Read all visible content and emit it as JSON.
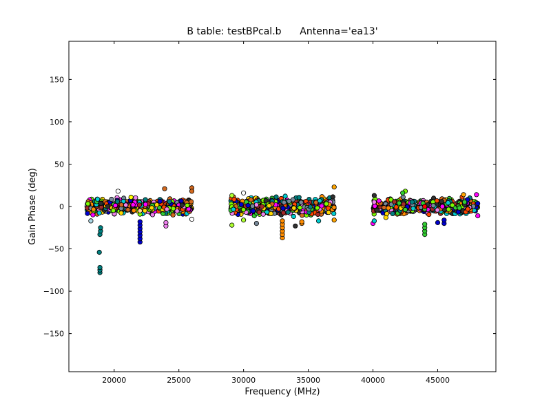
{
  "chart_data": {
    "type": "scatter",
    "title_left": "B table: testBPcal.b",
    "title_right": "Antenna='ea13'",
    "xlabel": "Frequency (MHz)",
    "ylabel": "Gain Phase (deg)",
    "xlim": [
      16500,
      49500
    ],
    "ylim": [
      -195,
      195
    ],
    "xticks": [
      20000,
      25000,
      30000,
      35000,
      40000,
      45000
    ],
    "xtick_labels": [
      "20000",
      "25000",
      "30000",
      "35000",
      "40000",
      "45000"
    ],
    "yticks": [
      150,
      100,
      50,
      0,
      -50,
      -100,
      -150
    ],
    "ytick_labels": [
      "150",
      "100",
      "50",
      "0",
      "−50",
      "−100",
      "−150"
    ],
    "grid": false,
    "legend": "none",
    "colors": [
      "#008080",
      "#ff8c00",
      "#2f2f2f",
      "#7cfc00",
      "#0000cd",
      "#ff00ff",
      "#ee82ee",
      "#ff4500",
      "#00ced1",
      "#ffd700",
      "#d2691e",
      "#778899",
      "#32cd32",
      "#a52a2a"
    ],
    "bands": [
      {
        "x_start": 17900,
        "x_end": 26000,
        "ymin": -12,
        "ymax": 12
      },
      {
        "x_start": 29000,
        "x_end": 37000,
        "ymin": -14,
        "ymax": 14
      },
      {
        "x_start": 40000,
        "x_end": 48100,
        "ymin": -12,
        "ymax": 12
      }
    ],
    "outliers": [
      {
        "x": 18900,
        "y": -78,
        "color": "#008080"
      },
      {
        "x": 18900,
        "y": -75,
        "color": "#008080"
      },
      {
        "x": 18900,
        "y": -72,
        "color": "#008080"
      },
      {
        "x": 18850,
        "y": -54,
        "color": "#008080"
      },
      {
        "x": 18900,
        "y": -33,
        "color": "#008080"
      },
      {
        "x": 18950,
        "y": -29,
        "color": "#008080"
      },
      {
        "x": 18950,
        "y": -25,
        "color": "#008080"
      },
      {
        "x": 18200,
        "y": -17,
        "color": "#add8e6"
      },
      {
        "x": 22000,
        "y": -42,
        "color": "#0000cd"
      },
      {
        "x": 22000,
        "y": -38,
        "color": "#0000cd"
      },
      {
        "x": 22000,
        "y": -34,
        "color": "#0000cd"
      },
      {
        "x": 22000,
        "y": -30,
        "color": "#0000cd"
      },
      {
        "x": 22000,
        "y": -26,
        "color": "#0000cd"
      },
      {
        "x": 22000,
        "y": -22,
        "color": "#0000cd"
      },
      {
        "x": 22000,
        "y": -18,
        "color": "#0000cd"
      },
      {
        "x": 22000,
        "y": -9,
        "color": "#7cfc00"
      },
      {
        "x": 22000,
        "y": -5,
        "color": "#ffd39b"
      },
      {
        "x": 23900,
        "y": 21,
        "color": "#d2691e"
      },
      {
        "x": 24000,
        "y": -23,
        "color": "#ee82ee"
      },
      {
        "x": 24000,
        "y": -19,
        "color": "#ee82ee"
      },
      {
        "x": 26000,
        "y": 22,
        "color": "#d2691e"
      },
      {
        "x": 26000,
        "y": 18,
        "color": "#d2691e"
      },
      {
        "x": 26000,
        "y": -15,
        "color": "#ffffff"
      },
      {
        "x": 20300,
        "y": 18,
        "color": "#ffffff"
      },
      {
        "x": 21300,
        "y": 11,
        "color": "#ffff00"
      },
      {
        "x": 29100,
        "y": -22,
        "color": "#adff2f"
      },
      {
        "x": 29100,
        "y": 13,
        "color": "#adff2f"
      },
      {
        "x": 30000,
        "y": 16,
        "color": "#ffffff"
      },
      {
        "x": 30000,
        "y": -16,
        "color": "#adff2f"
      },
      {
        "x": 31000,
        "y": -20,
        "color": "#778899"
      },
      {
        "x": 33000,
        "y": -37,
        "color": "#ff8c00"
      },
      {
        "x": 33000,
        "y": -33,
        "color": "#ff8c00"
      },
      {
        "x": 33000,
        "y": -29,
        "color": "#ff8c00"
      },
      {
        "x": 33000,
        "y": -25,
        "color": "#ff8c00"
      },
      {
        "x": 33000,
        "y": -21,
        "color": "#ff8c00"
      },
      {
        "x": 33000,
        "y": -17,
        "color": "#ff8c00"
      },
      {
        "x": 34500,
        "y": -20,
        "color": "#ff8c00"
      },
      {
        "x": 34500,
        "y": -18,
        "color": "#ff8c00"
      },
      {
        "x": 34000,
        "y": -23,
        "color": "#2f2f2f"
      },
      {
        "x": 35800,
        "y": -17,
        "color": "#00ced1"
      },
      {
        "x": 37000,
        "y": 23,
        "color": "#ffa500"
      },
      {
        "x": 37000,
        "y": -16,
        "color": "#ffa500"
      },
      {
        "x": 40000,
        "y": -20,
        "color": "#ff00ff"
      },
      {
        "x": 40100,
        "y": -17,
        "color": "#00ced1"
      },
      {
        "x": 40100,
        "y": 13,
        "color": "#2f2f2f"
      },
      {
        "x": 42500,
        "y": 18,
        "color": "#7cfc00"
      },
      {
        "x": 42300,
        "y": 16,
        "color": "#32cd32"
      },
      {
        "x": 41000,
        "y": -13,
        "color": "#ffd700"
      },
      {
        "x": 44000,
        "y": -33,
        "color": "#32cd32"
      },
      {
        "x": 44000,
        "y": -29,
        "color": "#32cd32"
      },
      {
        "x": 44000,
        "y": -25,
        "color": "#32cd32"
      },
      {
        "x": 44000,
        "y": -21,
        "color": "#32cd32"
      },
      {
        "x": 44000,
        "y": 0,
        "color": "#ff0000"
      },
      {
        "x": 45500,
        "y": -20,
        "color": "#0000cd"
      },
      {
        "x": 45500,
        "y": -16,
        "color": "#0000cd"
      },
      {
        "x": 45000,
        "y": -19,
        "color": "#0000cd"
      },
      {
        "x": 47000,
        "y": 14,
        "color": "#ffa500"
      },
      {
        "x": 48000,
        "y": 14,
        "color": "#ff00ff"
      },
      {
        "x": 48100,
        "y": -11,
        "color": "#ff00ff"
      }
    ]
  }
}
